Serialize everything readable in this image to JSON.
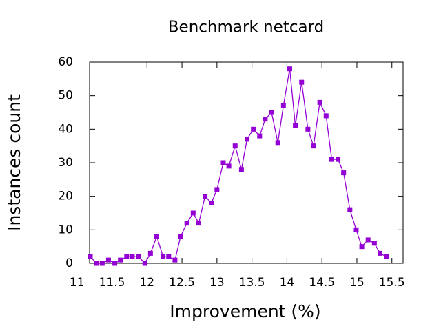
{
  "chart_data": {
    "type": "line",
    "title": "Benchmark netcard",
    "x_label": "Improvement (%)",
    "y_label": "Instances count",
    "x": [
      11.19,
      11.28,
      11.36,
      11.45,
      11.54,
      11.62,
      11.71,
      11.79,
      11.88,
      11.97,
      12.05,
      12.14,
      12.23,
      12.31,
      12.4,
      12.48,
      12.57,
      12.66,
      12.74,
      12.83,
      12.92,
      13.0,
      13.09,
      13.17,
      13.26,
      13.35,
      13.43,
      13.52,
      13.61,
      13.69,
      13.78,
      13.87,
      13.95,
      14.04,
      14.12,
      14.21,
      14.3,
      14.38,
      14.47,
      14.56,
      14.64,
      14.73,
      14.81,
      14.9,
      14.99,
      15.07,
      15.16,
      15.25,
      15.33,
      15.42
    ],
    "series": [
      {
        "color": "#9400d3",
        "values": [
          2,
          0,
          0,
          1,
          0,
          1,
          2,
          2,
          2,
          0,
          3,
          8,
          2,
          2,
          1,
          8,
          12,
          15,
          12,
          20,
          18,
          22,
          30,
          29,
          35,
          28,
          37,
          40,
          38,
          43,
          45,
          36,
          47,
          58,
          41,
          54,
          40,
          35,
          48,
          44,
          31,
          31,
          27,
          16,
          10,
          5,
          7,
          6,
          3,
          2
        ]
      }
    ],
    "xlim": [
      11.18,
      15.66
    ],
    "xticks": [
      11,
      11.5,
      12,
      12.5,
      13,
      13.5,
      14,
      14.5,
      15,
      15.5
    ],
    "ylim": [
      0,
      60
    ],
    "yticks": [
      0,
      10,
      20,
      30,
      40,
      50,
      60
    ]
  }
}
